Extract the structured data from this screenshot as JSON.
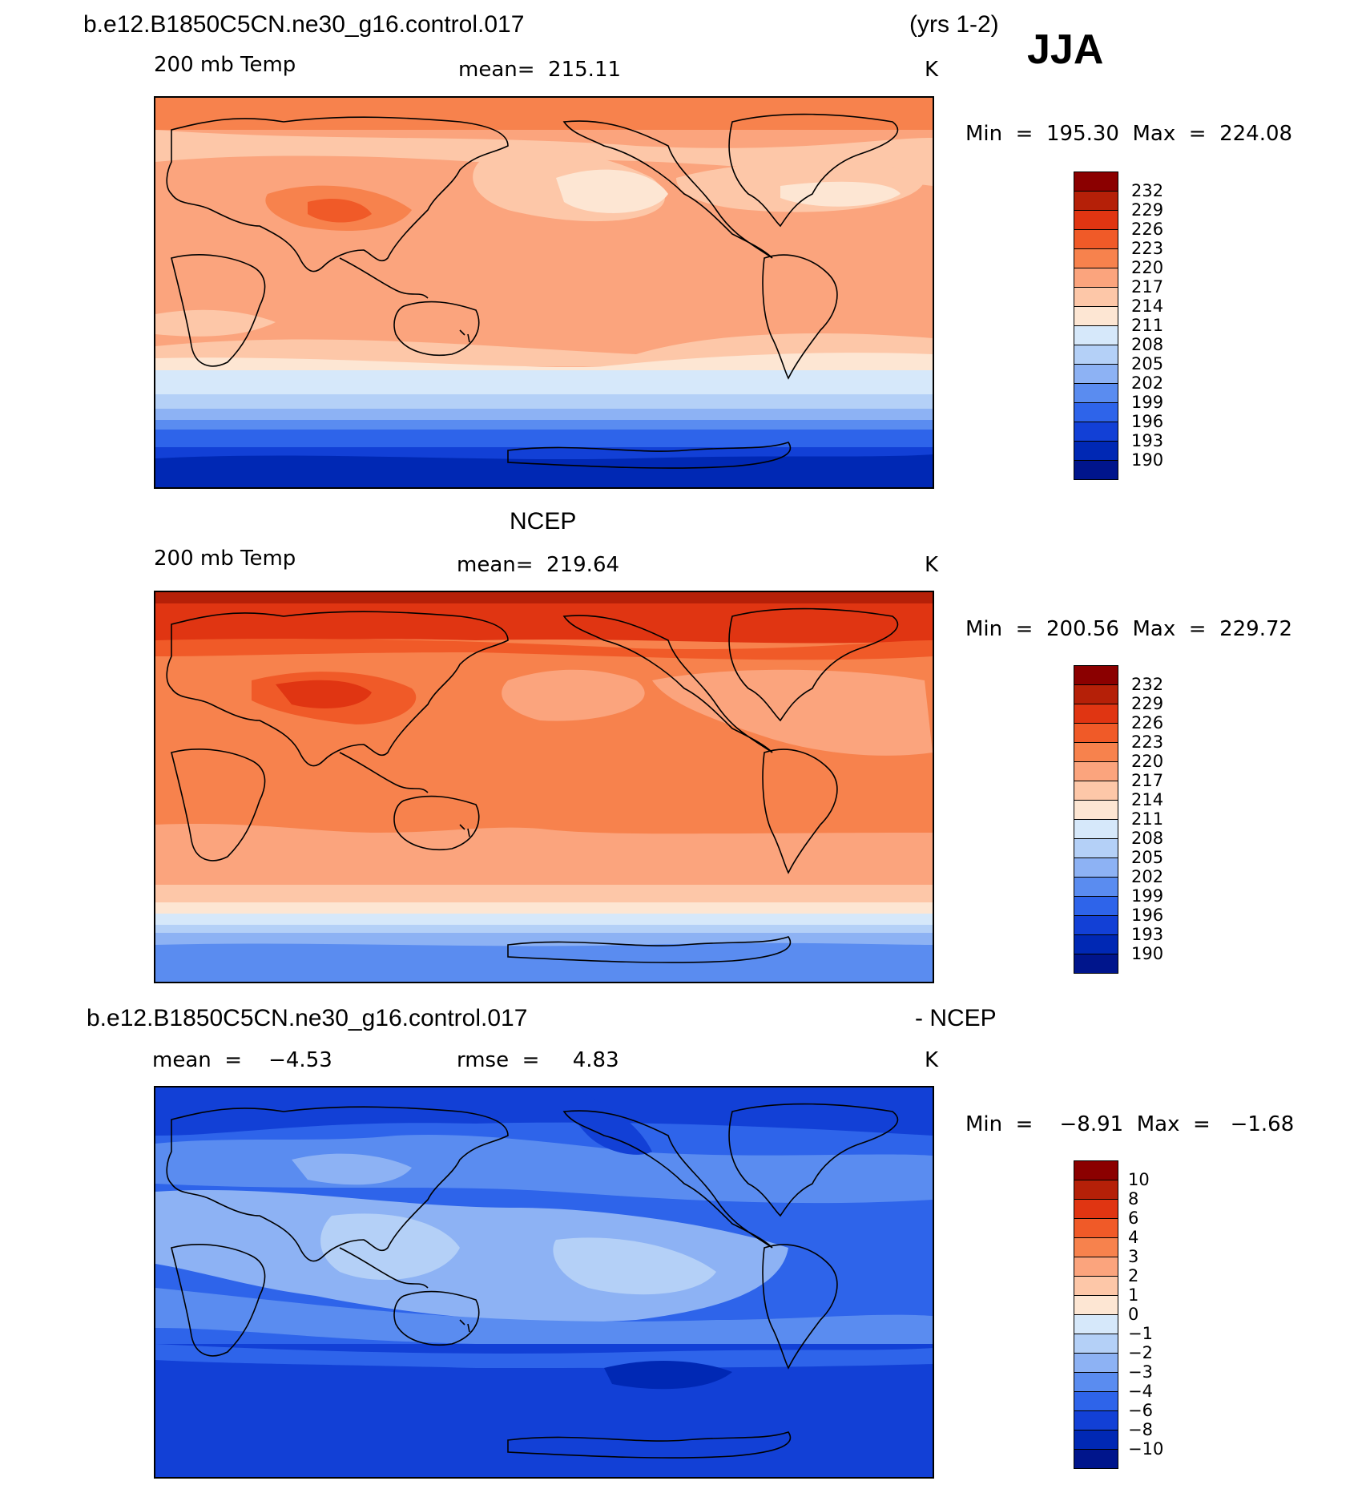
{
  "season": "JJA",
  "years": "(yrs 1-2)",
  "case_name": "b.e12.B1850C5CN.ne30_g16.control.017",
  "panel1": {
    "variable": "200 mb Temp",
    "mean": "mean=  215.11",
    "units": "K",
    "minmax": "Min  =  195.30  Max  =  224.08"
  },
  "panel2": {
    "title": "NCEP",
    "variable": "200 mb Temp",
    "mean": "mean=  219.64",
    "units": "K",
    "minmax": "Min  =  200.56  Max  =  229.72"
  },
  "panel3": {
    "title_left": "b.e12.B1850C5CN.ne30_g16.control.017",
    "title_right": "- NCEP",
    "mean": "mean  =    −4.53",
    "rmse": "rmse  =     4.83",
    "units": "K",
    "minmax": "Min  =    −8.91  Max  =   −1.68"
  },
  "colorbar_temp": {
    "labels": [
      "232",
      "229",
      "226",
      "223",
      "220",
      "217",
      "214",
      "211",
      "208",
      "205",
      "202",
      "199",
      "196",
      "193",
      "190"
    ],
    "colors": [
      "#8b0000",
      "#b52008",
      "#e03512",
      "#f05a28",
      "#f7824d",
      "#fba47d",
      "#fdc7a8",
      "#fde6d3",
      "#d6e8fa",
      "#b4d0f7",
      "#8db2f4",
      "#5a8cf0",
      "#2e64ea",
      "#1240d6",
      "#0028b4",
      "#00158c"
    ]
  },
  "colorbar_diff": {
    "labels": [
      "10",
      "8",
      "6",
      "4",
      "3",
      "2",
      "1",
      "0",
      "−1",
      "−2",
      "−3",
      "−4",
      "−6",
      "−8",
      "−10"
    ],
    "colors": [
      "#8b0000",
      "#b52008",
      "#e03512",
      "#f05a28",
      "#f7824d",
      "#fba47d",
      "#fdc7a8",
      "#fde6d3",
      "#d6e8fa",
      "#b4d0f7",
      "#8db2f4",
      "#5a8cf0",
      "#2e64ea",
      "#1240d6",
      "#0028b4",
      "#00158c"
    ]
  }
}
